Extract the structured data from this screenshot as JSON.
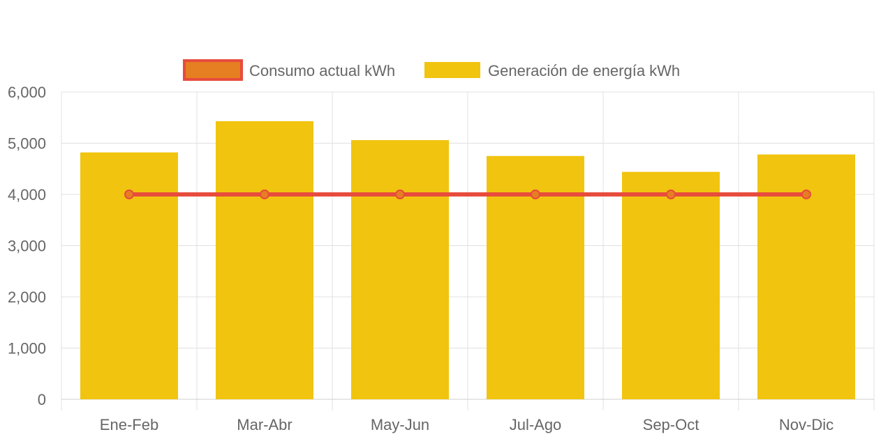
{
  "chart_data": {
    "type": "bar",
    "categories": [
      "Ene-Feb",
      "Mar-Abr",
      "May-Jun",
      "Jul-Ago",
      "Sep-Oct",
      "Nov-Dic"
    ],
    "series": [
      {
        "name": "Consumo actual kWh",
        "type": "line",
        "values": [
          4000,
          4000,
          4000,
          4000,
          4000,
          4000
        ],
        "color": "#e74c3c",
        "fill_color": "#e67e22"
      },
      {
        "name": "Generación de energía kWh",
        "type": "bar",
        "values": [
          4820,
          5430,
          5060,
          4750,
          4440,
          4780
        ],
        "color": "#f1c40f"
      }
    ],
    "yticks": [
      "0",
      "1,000",
      "2,000",
      "3,000",
      "4,000",
      "5,000",
      "6,000"
    ],
    "ylim": [
      0,
      6000
    ],
    "grid": true,
    "legend_position": "top"
  }
}
